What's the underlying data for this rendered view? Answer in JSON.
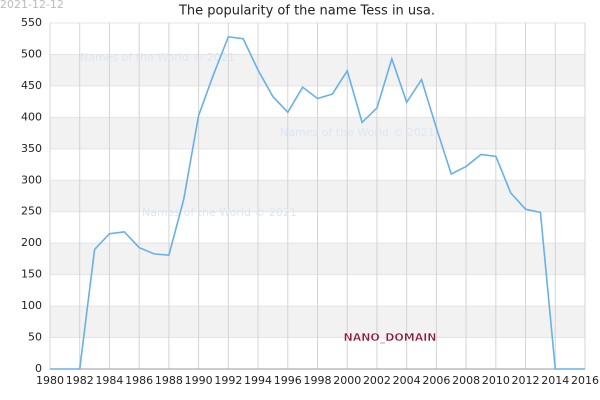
{
  "chart_data": {
    "type": "line",
    "date": "2021-12-12",
    "title": "The popularity of the name Tess in usa.",
    "watermarks": [
      "Names of the World © 2021",
      "Names of the World © 2021",
      "Names of the World © 2021"
    ],
    "badge": "NANO_DOMAIN",
    "x": [
      1980,
      1981,
      1982,
      1983,
      1984,
      1985,
      1986,
      1987,
      1988,
      1989,
      1990,
      1991,
      1992,
      1993,
      1994,
      1995,
      1996,
      1997,
      1998,
      1999,
      2000,
      2001,
      2002,
      2003,
      2004,
      2005,
      2006,
      2007,
      2008,
      2009,
      2010,
      2011,
      2012,
      2013,
      2014,
      2015,
      2016
    ],
    "values": [
      0,
      0,
      0,
      190,
      215,
      218,
      193,
      183,
      181,
      270,
      403,
      468,
      528,
      525,
      475,
      433,
      408,
      448,
      430,
      437,
      474,
      392,
      415,
      493,
      424,
      460,
      383,
      310,
      322,
      341,
      338,
      280,
      254,
      249,
      0,
      0,
      0
    ],
    "color": "#68b0ea",
    "xlim": [
      1980,
      2016
    ],
    "xticks": [
      1980,
      1982,
      1984,
      1986,
      1988,
      1990,
      1992,
      1994,
      1996,
      1998,
      2000,
      2002,
      2004,
      2006,
      2008,
      2010,
      2012,
      2014,
      2016
    ],
    "ylim": [
      0,
      550
    ],
    "yticks": [
      0,
      50,
      100,
      150,
      200,
      250,
      300,
      350,
      400,
      450,
      500,
      550
    ],
    "grid": true,
    "bands": true
  }
}
